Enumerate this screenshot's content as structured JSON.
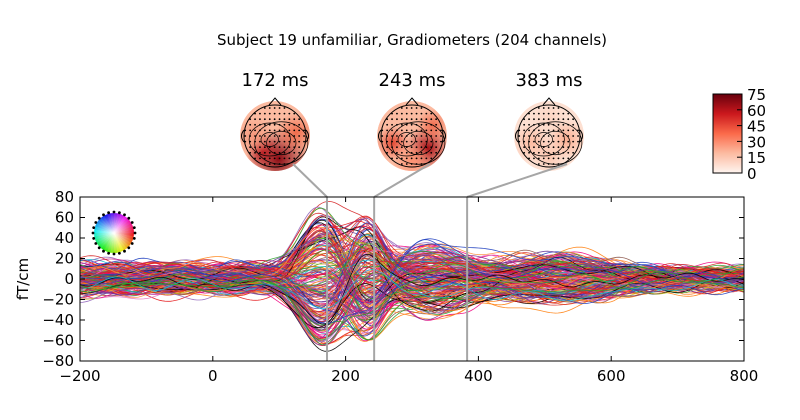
{
  "chart_data": {
    "type": "line",
    "title": "Subject 19 unfamiliar, Gradiometers (204 channels)",
    "xlabel": "",
    "ylabel": "fT/cm",
    "xlim": [
      -200,
      800
    ],
    "ylim": [
      -80,
      80
    ],
    "x_ticks": [
      -200,
      0,
      200,
      400,
      600,
      800
    ],
    "y_ticks": [
      -80,
      -60,
      -40,
      -20,
      0,
      20,
      40,
      60,
      80
    ],
    "x_tick_labels": [
      "−200",
      "0",
      "200",
      "400",
      "600",
      "800"
    ],
    "y_tick_labels": [
      "−80",
      "−60",
      "−40",
      "−20",
      "0",
      "20",
      "40",
      "60",
      "80"
    ],
    "n_channels": 204,
    "topomap_times": [
      172,
      243,
      383
    ],
    "topomap_labels": [
      "172 ms",
      "243 ms",
      "383 ms"
    ],
    "colorbar": {
      "min": 0,
      "max": 75,
      "ticks": [
        "75",
        "60",
        "45",
        "30",
        "15",
        "0"
      ],
      "colormap": "Reds"
    },
    "marker_line_color": "#a6a6a6",
    "line_palette": [
      "#d62728",
      "#e41a1c",
      "#ff7f0e",
      "#e377c2",
      "#9467bd",
      "#8c564b",
      "#1f3fbf",
      "#2ca02c",
      "#17becf",
      "#bcbd22",
      "#c51b7d",
      "#7b3294",
      "#000000",
      "#f0027f",
      "#fd8d3c",
      "#6a3d9a"
    ]
  }
}
